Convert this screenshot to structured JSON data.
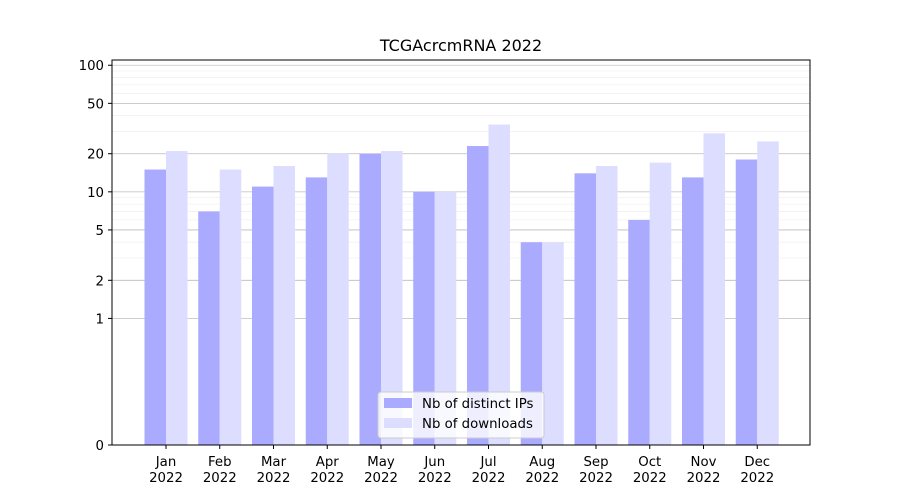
{
  "chart_data": {
    "type": "bar",
    "title": "TCGAcrcmRNA 2022",
    "xlabel": "",
    "ylabel": "",
    "categories": [
      [
        "Jan",
        "2022"
      ],
      [
        "Feb",
        "2022"
      ],
      [
        "Mar",
        "2022"
      ],
      [
        "Apr",
        "2022"
      ],
      [
        "May",
        "2022"
      ],
      [
        "Jun",
        "2022"
      ],
      [
        "Jul",
        "2022"
      ],
      [
        "Aug",
        "2022"
      ],
      [
        "Sep",
        "2022"
      ],
      [
        "Oct",
        "2022"
      ],
      [
        "Nov",
        "2022"
      ],
      [
        "Dec",
        "2022"
      ]
    ],
    "series": [
      {
        "name": "Nb of distinct IPs",
        "color": "#aaaaff",
        "values": [
          15,
          7,
          11,
          13,
          20,
          10,
          23,
          4,
          14,
          6,
          13,
          18
        ]
      },
      {
        "name": "Nb of downloads",
        "color": "#ddddff",
        "values": [
          21,
          15,
          16,
          20,
          21,
          10,
          34,
          4,
          16,
          17,
          29,
          25
        ]
      }
    ],
    "yscale": "symlog",
    "ylim": [
      0,
      110
    ],
    "yticks": [
      0,
      1,
      2,
      5,
      10,
      20,
      50,
      100
    ],
    "ytick_labels": [
      "0",
      "1",
      "2",
      "5",
      "10",
      "20",
      "50",
      "100"
    ],
    "grid": true,
    "legend_position": "bottom-center"
  }
}
